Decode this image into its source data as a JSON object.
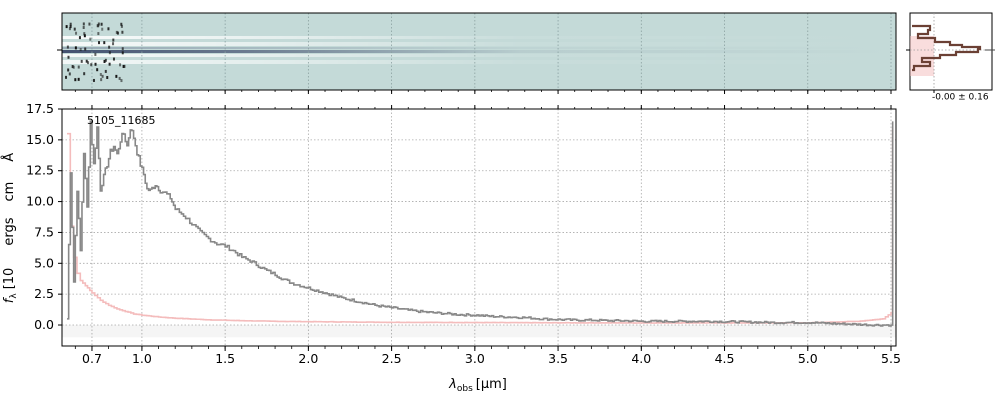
{
  "chart_data": {
    "type": "line",
    "annotation": "5105_11685",
    "xlabel_main": "λ",
    "xlabel_sub": "obs",
    "xlabel_unit": "[μm]",
    "ylabel_text": "f",
    "ylabel_sub": "λ",
    "ylabel_partial": "[10",
    "ylabel_mid": "ergs",
    "ylabel_cm": "cm",
    "ylabel_A": "Å",
    "x_ticks_major": [
      0.7,
      1.0,
      1.5,
      2.0,
      2.5,
      3.0,
      3.5,
      4.0,
      4.5,
      5.0,
      5.5
    ],
    "x_tick_labels": [
      "0.7",
      "1.0",
      "1.5",
      "2.0",
      "2.5",
      "3.0",
      "3.5",
      "4.0",
      "4.5",
      "5.0",
      "5.5"
    ],
    "y_ticks": [
      0.0,
      2.5,
      5.0,
      7.5,
      10.0,
      12.5,
      15.0,
      17.5
    ],
    "y_tick_labels": [
      "0.0",
      "2.5",
      "5.0",
      "7.5",
      "10.0",
      "12.5",
      "15.0",
      "17.5"
    ],
    "ylim": [
      -1.7,
      17.5
    ],
    "xlim": [
      0.52,
      5.53
    ],
    "grid": true,
    "series": [
      {
        "role": "flux",
        "color": "#888888",
        "x": [
          0.55,
          0.57,
          0.59,
          0.61,
          0.63,
          0.65,
          0.67,
          0.69,
          0.71,
          0.73,
          0.75,
          0.77,
          0.79,
          0.81,
          0.83,
          0.85,
          0.87,
          0.89,
          0.91,
          0.93,
          0.95,
          0.97,
          0.99,
          1.01,
          1.03,
          1.05,
          1.08,
          1.11,
          1.14,
          1.17,
          1.2,
          1.25,
          1.3,
          1.35,
          1.4,
          1.45,
          1.5,
          1.55,
          1.6,
          1.65,
          1.7,
          1.75,
          1.8,
          1.85,
          1.9,
          1.95,
          2.0,
          2.05,
          2.1,
          2.15,
          2.2,
          2.3,
          2.4,
          2.5,
          2.6,
          2.7,
          2.8,
          2.9,
          3.0,
          3.1,
          3.2,
          3.3,
          3.4,
          3.5,
          3.6,
          3.7,
          3.8,
          3.9,
          4.0,
          4.2,
          4.4,
          4.6,
          4.8,
          5.0,
          5.2,
          5.4,
          5.5,
          5.51
        ],
        "y": [
          0.5,
          12.5,
          3.5,
          11.0,
          6.0,
          14.0,
          9.5,
          16.5,
          13.0,
          16.0,
          11.0,
          12.0,
          13.0,
          14.0,
          14.5,
          13.8,
          15.0,
          15.5,
          14.5,
          16.0,
          15.2,
          14.0,
          13.0,
          12.2,
          11.0,
          10.9,
          11.4,
          10.9,
          10.7,
          10.3,
          9.4,
          8.9,
          8.2,
          7.5,
          7.0,
          6.6,
          6.4,
          6.0,
          5.5,
          5.2,
          4.8,
          4.4,
          4.1,
          3.7,
          3.4,
          3.2,
          3.0,
          2.8,
          2.6,
          2.4,
          2.2,
          1.9,
          1.6,
          1.4,
          1.2,
          1.05,
          0.95,
          0.85,
          0.8,
          0.7,
          0.65,
          0.6,
          0.5,
          0.45,
          0.4,
          0.4,
          0.35,
          0.35,
          0.3,
          0.3,
          0.3,
          0.25,
          0.2,
          0.2,
          0.1,
          0.0,
          0.0,
          16.5
        ]
      },
      {
        "role": "error",
        "color": "#f4bcbc",
        "x": [
          0.55,
          0.57,
          0.59,
          0.61,
          0.63,
          0.66,
          0.7,
          0.75,
          0.8,
          0.85,
          0.9,
          0.95,
          1.0,
          1.1,
          1.2,
          1.4,
          1.6,
          1.8,
          2.0,
          2.5,
          3.0,
          3.5,
          4.0,
          4.5,
          5.0,
          5.3,
          5.45,
          5.5,
          5.51
        ],
        "y": [
          15.5,
          8.0,
          5.5,
          4.2,
          3.6,
          3.2,
          2.6,
          2.0,
          1.6,
          1.3,
          1.1,
          0.9,
          0.8,
          0.65,
          0.55,
          0.42,
          0.35,
          0.3,
          0.27,
          0.22,
          0.2,
          0.18,
          0.17,
          0.17,
          0.18,
          0.3,
          0.5,
          1.0,
          16.0
        ]
      }
    ],
    "profile_label": "-0.00 ± 0.16"
  },
  "colors": {
    "flux": "#888888",
    "error": "#f4bcbc",
    "profile": "#6b4034",
    "spectrum_bg": "#c4dad8",
    "grid": "#aaaaaa"
  }
}
